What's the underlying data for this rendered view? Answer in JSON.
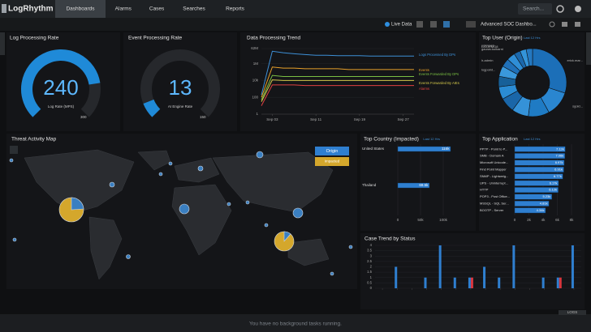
{
  "nav": {
    "logo": "LogRhythm",
    "tabs": [
      "Dashboards",
      "Alarms",
      "Cases",
      "Searches",
      "Reports"
    ],
    "search": "Search..."
  },
  "toolbar": {
    "live": "Live Data",
    "dashboard": "Advanced SOC Dashbo..."
  },
  "footer": "You have no background tasks running.",
  "logs_tab": "LOGS",
  "chart_data": [
    {
      "type": "gauge",
      "title": "Log Processing Rate",
      "value": 240,
      "label": "Log Rate (MPS)",
      "ylim": [
        0,
        300
      ],
      "color": "#1f8ad8"
    },
    {
      "type": "gauge",
      "title": "Event Processing Rate",
      "value": 13,
      "label": "AI Engine Rate",
      "ylim": [
        0,
        150
      ],
      "color": "#1f8ad8"
    },
    {
      "type": "line",
      "title": "Data Processing Trend",
      "log_scale": true,
      "grid": true,
      "x": [
        "Sep 01",
        "Sep 03",
        "Sep 05",
        "Sep 07",
        "Sep 09",
        "Sep 11",
        "Sep 13",
        "Sep 15",
        "Sep 17",
        "Sep 19",
        "Sep 21",
        "Sep 23",
        "Sep 25",
        "Sep 27",
        "Sep 29"
      ],
      "xticks": [
        "Sep 03",
        "Sep 11",
        "Sep 19",
        "Sep 27"
      ],
      "ylim": [
        1,
        62000000
      ],
      "yticks": [
        {
          "value": 62000000,
          "label": "62M"
        },
        {
          "value": 1000000,
          "label": "1M"
        },
        {
          "value": 10000,
          "label": "10k"
        },
        100,
        1
      ],
      "series": [
        {
          "name": "Logs Processed By DPs",
          "color": "#3d8fd6",
          "values": [
            200,
            30000000,
            20000000,
            15000000,
            12000000,
            10000000,
            10000000,
            9000000,
            9000000,
            9000000,
            8000000,
            8000000,
            8000000,
            8000000,
            8000000
          ]
        },
        {
          "name": "Events",
          "color": "#e8a02a",
          "values": [
            100,
            400000,
            300000,
            300000,
            250000,
            250000,
            250000,
            250000,
            200000,
            200000,
            200000,
            200000,
            200000,
            200000,
            200000
          ]
        },
        {
          "name": "Events Forwarded By DPs",
          "color": "#7bc043",
          "values": [
            50,
            40000,
            30000,
            30000,
            30000,
            30000,
            30000,
            30000,
            30000,
            30000,
            30000,
            30000,
            30000,
            30000,
            30000
          ]
        },
        {
          "name": "Events Forwarded By AIEs",
          "color": "#d4c84a",
          "values": [
            30,
            12000,
            10000,
            10000,
            10000,
            10000,
            10000,
            10000,
            10000,
            10000,
            10000,
            10000,
            10000,
            10000,
            10000
          ]
        },
        {
          "name": "Alarms",
          "color": "#e04040",
          "values": [
            10,
            3000,
            3000,
            3000,
            2500,
            2500,
            2500,
            2500,
            2500,
            2500,
            2500,
            2500,
            2500,
            2500,
            2500
          ]
        }
      ]
    },
    {
      "type": "pie",
      "title": "Top User (Origin)",
      "subtitle": "Last 12 Hrs",
      "categories": [
        "erick.mar...",
        "sgold...",
        null,
        null,
        null,
        null,
        null,
        "logpoint...",
        "lr-admin",
        null,
        "gaurav.kulkarni",
        "LA-DEMO8",
        "unknown"
      ],
      "values": [
        30,
        12,
        10,
        8,
        7,
        6,
        5,
        5,
        4,
        4,
        3,
        3,
        3
      ],
      "colors": [
        "#1c6fb8",
        "#2a86d0",
        "#1f7bc4",
        "#3592d8",
        "#1a66a8",
        "#2b8cd4",
        "#176099",
        "#3a98dc",
        "#2070b8",
        "#2f8ed6",
        "#1b68ac",
        "#3394da",
        "#2478c0"
      ]
    },
    {
      "type": "map",
      "title": "Threat Activity Map",
      "buttons": [
        "Origin",
        "Impacted"
      ]
    },
    {
      "type": "hbar",
      "title": "Top Country (Impacted)",
      "subtitle": "Last 12 Hrs",
      "color": "#2f7fd0",
      "categories": [
        "United States",
        "Thailand"
      ],
      "values": [
        116000,
        69500
      ],
      "value_labels": [
        "116k",
        "69.5k"
      ],
      "xlim": [
        0,
        125000
      ],
      "xticks": [
        0,
        {
          "value": 50000,
          "label": "50k"
        },
        {
          "value": 100000,
          "label": "100k"
        }
      ],
      "grid": true
    },
    {
      "type": "hbar",
      "title": "Top Application",
      "subtitle": "Last 12 Hrs",
      "color": "#2f7fd0",
      "categories": [
        "PPTP - Point to P...",
        "SMB - Domain A",
        "Microsoft Unicode...",
        "Find Point Mapper",
        "SNMP - Lightweig...",
        "UPS - Uninterrupt...",
        "HTTP",
        "POP3 - Post Office...",
        "MSSQL - SQL Ser...",
        "BOOTP - Server"
      ],
      "values": [
        7120,
        7060,
        6970,
        6910,
        6770,
        6170,
        6120,
        5230,
        4810,
        4340
      ],
      "value_labels": [
        "7.12k",
        "7.06k",
        "6.97k",
        "6.91k",
        "6.77k",
        "6.17k",
        "6.12k",
        "5.23k",
        "4.81k",
        "4.34k"
      ],
      "xlim": [
        0,
        8000
      ],
      "xticks": [
        0,
        {
          "value": 2000,
          "label": "2k"
        },
        {
          "value": 4000,
          "label": "4k"
        },
        {
          "value": 6000,
          "label": "6k"
        },
        {
          "value": 8000,
          "label": "8k"
        }
      ],
      "grid": true
    },
    {
      "type": "bar",
      "title": "Case Trend by Status",
      "categories": [
        null,
        null,
        null,
        null,
        null,
        null,
        null,
        null,
        null,
        null,
        null,
        null,
        null,
        null
      ],
      "ylim": [
        0,
        4
      ],
      "yticks": [
        0,
        0.5,
        1,
        1.5,
        2,
        2.5,
        3,
        3.5,
        4
      ],
      "grid": true,
      "series": [
        {
          "color": "#2f7fd0",
          "values": [
            0,
            2,
            0,
            1,
            4,
            1,
            1,
            2,
            1,
            4,
            0,
            1,
            1,
            4
          ]
        },
        {
          "color": "#d9363e",
          "values": [
            0,
            0,
            0,
            0,
            0,
            0,
            1,
            0,
            0,
            0,
            0,
            0,
            1,
            0
          ]
        }
      ]
    }
  ]
}
